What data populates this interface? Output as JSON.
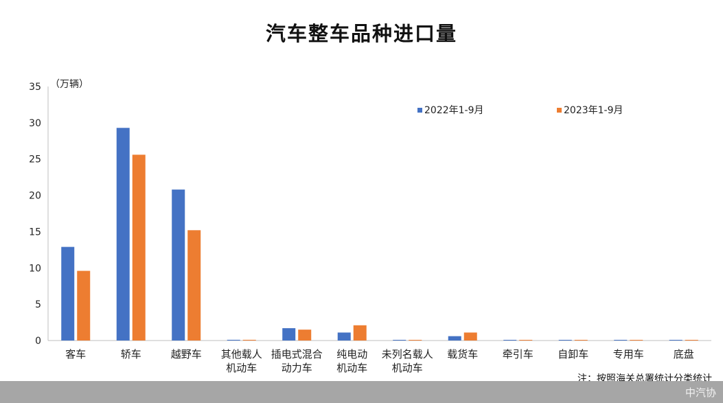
{
  "chart_data": {
    "type": "bar",
    "title": "汽车整车品种进口量",
    "ylabel": "（万辆）",
    "xlabel": "",
    "ylim": [
      0,
      35
    ],
    "yticks": [
      0,
      5,
      10,
      15,
      20,
      25,
      30,
      35
    ],
    "grid": false,
    "legend_placement": "top-right",
    "categories": [
      [
        "客车"
      ],
      [
        "轿车"
      ],
      [
        "越野车"
      ],
      [
        "其他载人",
        "机动车"
      ],
      [
        "插电式混合",
        "动力车"
      ],
      [
        "纯电动",
        "机动车"
      ],
      [
        "未列名载人",
        "机动车"
      ],
      [
        "载货车"
      ],
      [
        "牵引车"
      ],
      [
        "自卸车"
      ],
      [
        "专用车"
      ],
      [
        "底盘"
      ]
    ],
    "series": [
      {
        "name": "2022年1-9月",
        "color": "#4472c4",
        "values": [
          12.9,
          29.3,
          20.8,
          0.1,
          1.7,
          1.1,
          0.05,
          0.6,
          0.05,
          0.05,
          0.05,
          0.05
        ]
      },
      {
        "name": "2023年1-9月",
        "color": "#ed7d31",
        "values": [
          9.6,
          25.6,
          15.2,
          0.1,
          1.5,
          2.1,
          0.05,
          1.1,
          0.05,
          0.05,
          0.05,
          0.05
        ]
      }
    ],
    "note": "注：按照海关总署统计分类统计"
  },
  "footer": {
    "source": "中汽协"
  }
}
